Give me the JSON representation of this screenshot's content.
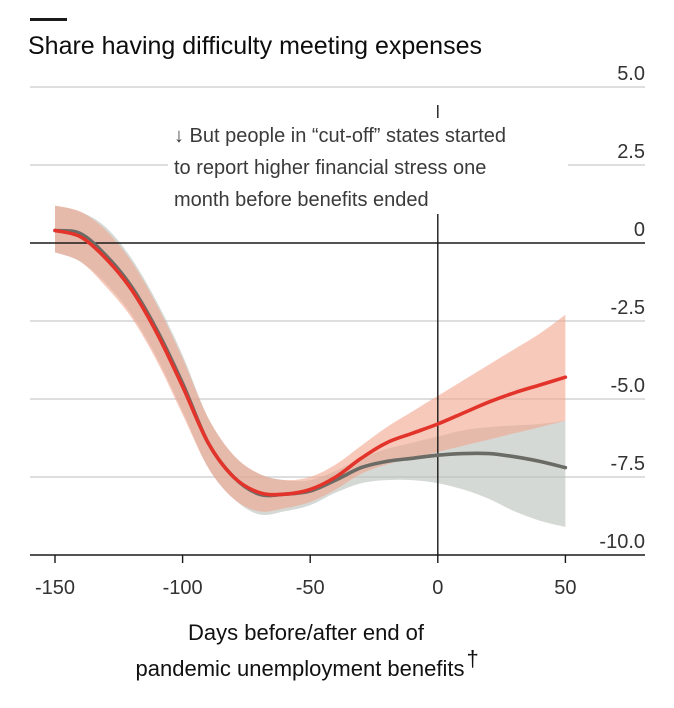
{
  "chart_data": {
    "type": "line",
    "title": "Share having difficulty meeting expenses",
    "xlabel_lines": [
      "Days before/after end of",
      "pandemic unemployment benefits"
    ],
    "xlabel_mark": "†",
    "x_ticks": [
      -150,
      -100,
      -50,
      0,
      50
    ],
    "x_tick_labels": [
      "-150",
      "-100",
      "-50",
      "0",
      "50"
    ],
    "y_ticks": [
      5,
      2.5,
      0,
      -2.5,
      -5,
      -7.5,
      -10
    ],
    "y_tick_labels": [
      "5.0",
      "2.5",
      "0",
      "-2.5",
      "-5.0",
      "-7.5",
      "-10.0"
    ],
    "xlim": [
      -160,
      82
    ],
    "ylim": [
      -10,
      5
    ],
    "grid": true,
    "annotation_lines": [
      "↓ But people in “cut-off” states started",
      "to report higher financial stress one",
      "month before benefits ended"
    ],
    "colors": {
      "red_line": "#e3342b",
      "red_band": "#f2a58e",
      "grey_line": "#6b6b66",
      "grey_band": "#b9bfb9",
      "gridline": "#c9c9c9",
      "axis": "#1a1a1a"
    },
    "series": [
      {
        "color_key": "grey",
        "x": [
          -150,
          -140,
          -130,
          -120,
          -110,
          -100,
          -90,
          -80,
          -70,
          -60,
          -50,
          -40,
          -30,
          -20,
          -10,
          0,
          10,
          20,
          30,
          40,
          50
        ],
        "y": [
          0.4,
          0.3,
          -0.4,
          -1.4,
          -2.8,
          -4.5,
          -6.4,
          -7.5,
          -8.05,
          -8.05,
          -7.95,
          -7.6,
          -7.2,
          -7.0,
          -6.9,
          -6.8,
          -6.75,
          -6.75,
          -6.85,
          -7.0,
          -7.2
        ],
        "lower": [
          -0.3,
          -0.6,
          -1.3,
          -2.3,
          -3.7,
          -5.4,
          -7.2,
          -8.2,
          -8.7,
          -8.6,
          -8.4,
          -8.0,
          -7.7,
          -7.6,
          -7.6,
          -7.7,
          -7.9,
          -8.2,
          -8.6,
          -8.9,
          -9.1
        ],
        "upper": [
          1.2,
          1.0,
          0.5,
          -0.5,
          -1.9,
          -3.6,
          -5.6,
          -6.8,
          -7.4,
          -7.6,
          -7.6,
          -7.3,
          -6.9,
          -6.6,
          -6.4,
          -6.2,
          -6.0,
          -5.9,
          -5.85,
          -5.8,
          -5.7
        ]
      },
      {
        "color_key": "red",
        "x": [
          -150,
          -140,
          -130,
          -120,
          -110,
          -100,
          -90,
          -80,
          -70,
          -60,
          -50,
          -40,
          -30,
          -20,
          -10,
          0,
          10,
          20,
          30,
          40,
          50
        ],
        "y": [
          0.4,
          0.2,
          -0.5,
          -1.5,
          -2.9,
          -4.6,
          -6.4,
          -7.5,
          -8.0,
          -8.05,
          -7.9,
          -7.5,
          -6.9,
          -6.4,
          -6.1,
          -5.8,
          -5.45,
          -5.1,
          -4.8,
          -4.55,
          -4.3
        ],
        "lower": [
          -0.3,
          -0.6,
          -1.4,
          -2.4,
          -3.8,
          -5.5,
          -7.2,
          -8.2,
          -8.6,
          -8.5,
          -8.3,
          -7.9,
          -7.4,
          -7.1,
          -6.9,
          -6.7,
          -6.5,
          -6.3,
          -6.1,
          -5.9,
          -5.7
        ],
        "upper": [
          1.2,
          1.0,
          0.4,
          -0.6,
          -2.0,
          -3.7,
          -5.6,
          -6.8,
          -7.4,
          -7.6,
          -7.5,
          -7.1,
          -6.5,
          -5.9,
          -5.4,
          -4.9,
          -4.4,
          -3.9,
          -3.4,
          -2.9,
          -2.3
        ]
      }
    ]
  }
}
